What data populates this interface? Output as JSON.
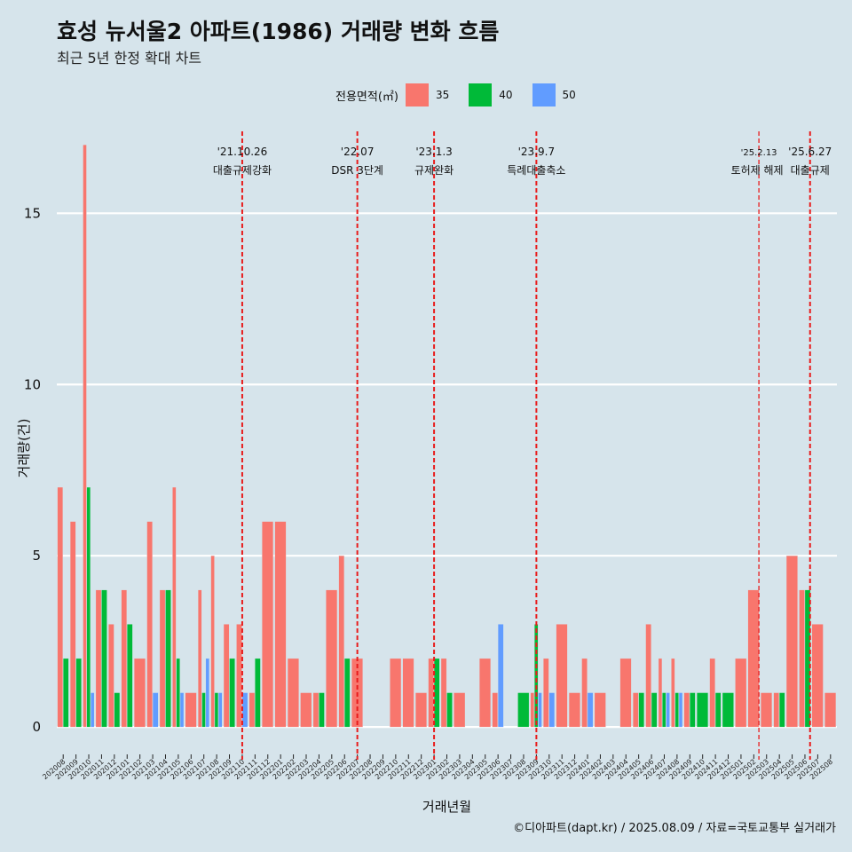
{
  "header": {
    "title": "효성 뉴서울2 아파트(1986) 거래량 변화 흐름",
    "subtitle": "최근 5년 한정 확대 차트"
  },
  "legend": {
    "title": "전용면적(㎡)",
    "items": [
      {
        "label": "35",
        "color": "#F8766D"
      },
      {
        "label": "40",
        "color": "#00BA38"
      },
      {
        "label": "50",
        "color": "#619CFF"
      }
    ]
  },
  "caption": "©디아파트(dapt.kr) / 2025.08.09 / 자료=국토교통부 실거래가",
  "chart_data": {
    "type": "bar",
    "xlabel": "거래년월",
    "ylabel": "거래량(건)",
    "ylim": [
      -0.8,
      17.6
    ],
    "yticks": [
      0,
      5,
      10,
      15
    ],
    "grid": true,
    "legend_position": "top",
    "categories": [
      "202008",
      "202009",
      "202010",
      "202011",
      "202012",
      "202101",
      "202102",
      "202103",
      "202104",
      "202105",
      "202106",
      "202107",
      "202108",
      "202109",
      "202110",
      "202111",
      "202112",
      "202201",
      "202202",
      "202203",
      "202204",
      "202205",
      "202206",
      "202207",
      "202208",
      "202209",
      "202210",
      "202211",
      "202212",
      "202301",
      "202302",
      "202303",
      "202304",
      "202305",
      "202306",
      "202307",
      "202308",
      "202309",
      "202310",
      "202311",
      "202312",
      "202401",
      "202402",
      "202403",
      "202404",
      "202405",
      "202406",
      "202407",
      "202408",
      "202409",
      "202410",
      "202411",
      "202412",
      "202501",
      "202502",
      "202503",
      "202504",
      "202505",
      "202506",
      "202507",
      "202508"
    ],
    "series": [
      {
        "name": "35",
        "color": "#F8766D",
        "values": [
          7,
          6,
          17,
          4,
          3,
          4,
          2,
          6,
          4,
          7,
          1,
          4,
          5,
          3,
          3,
          1,
          6,
          6,
          2,
          1,
          1,
          4,
          5,
          2,
          0,
          0,
          2,
          2,
          1,
          2,
          2,
          1,
          0,
          2,
          1,
          0,
          0,
          1,
          2,
          3,
          1,
          2,
          1,
          0,
          2,
          1,
          3,
          2,
          2,
          1,
          0,
          2,
          0,
          2,
          4,
          1,
          1,
          5,
          4,
          3,
          1
        ]
      },
      {
        "name": "40",
        "color": "#00BA38",
        "values": [
          2,
          2,
          7,
          4,
          1,
          3,
          0,
          0,
          4,
          2,
          0,
          1,
          1,
          2,
          0,
          2,
          0,
          0,
          0,
          0,
          1,
          0,
          2,
          0,
          0,
          0,
          0,
          0,
          0,
          2,
          1,
          0,
          0,
          0,
          0,
          0,
          1,
          3,
          0,
          0,
          0,
          0,
          0,
          0,
          0,
          1,
          1,
          1,
          1,
          1,
          1,
          1,
          1,
          0,
          0,
          0,
          1,
          0,
          4,
          0,
          0
        ]
      },
      {
        "name": "50",
        "color": "#619CFF",
        "values": [
          0,
          0,
          1,
          0,
          0,
          0,
          0,
          1,
          0,
          1,
          0,
          2,
          1,
          0,
          1,
          0,
          0,
          0,
          0,
          0,
          0,
          0,
          0,
          0,
          0,
          0,
          0,
          0,
          0,
          0,
          0,
          0,
          0,
          0,
          3,
          0,
          0,
          1,
          1,
          0,
          0,
          1,
          0,
          0,
          0,
          0,
          0,
          1,
          1,
          0,
          0,
          0,
          0,
          0,
          0,
          0,
          0,
          0,
          0,
          0,
          0
        ]
      }
    ],
    "annotations": [
      {
        "x_index": 14.0,
        "date": "'21.10.26",
        "text": "대출규제강화"
      },
      {
        "x_index": 23.0,
        "date": "'22.07",
        "text": "DSR 3단계"
      },
      {
        "x_index": 29.0,
        "date": "'23.1.3",
        "text": "규제완화"
      },
      {
        "x_index": 37.0,
        "date": "'23.9.7",
        "text": "특례대출축소"
      },
      {
        "x_index": 54.4,
        "date": "'25.2.13",
        "text": "토허제 해제"
      },
      {
        "x_index": 58.4,
        "date": "'25.6.27",
        "text": "대출규제"
      }
    ]
  }
}
